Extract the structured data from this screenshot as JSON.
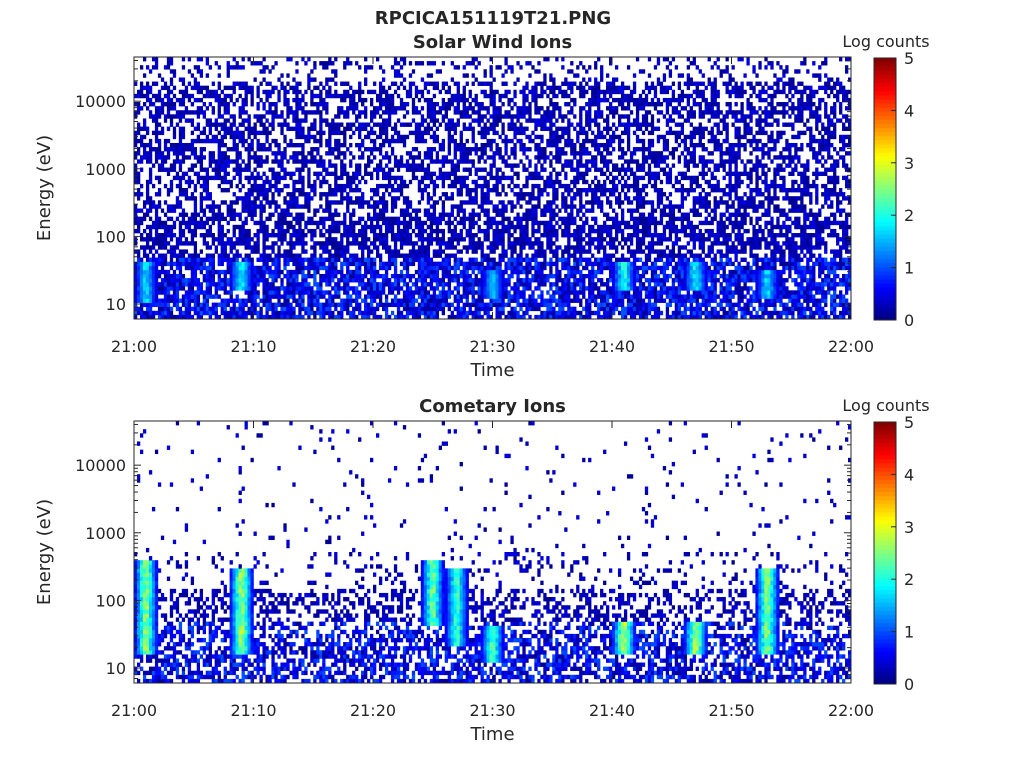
{
  "figure_title": "RPCICA151119T21.PNG",
  "chart_data": [
    {
      "type": "heatmap",
      "title": "Solar Wind Ions",
      "xlabel": "Time",
      "ylabel": "Energy (eV)",
      "x_ticks": [
        "21:00",
        "21:10",
        "21:20",
        "21:30",
        "21:40",
        "21:50",
        "22:00"
      ],
      "xlim": [
        "21:00",
        "22:00"
      ],
      "y_scale": "log",
      "y_ticks": [
        10,
        100,
        1000,
        10000
      ],
      "y_tick_labels": [
        "10",
        "100",
        "1000",
        "10000"
      ],
      "ylim": [
        6,
        45000
      ],
      "colorbar": {
        "label": "Log counts",
        "range": [
          0,
          5
        ],
        "ticks": [
          "0",
          "1",
          "2",
          "3",
          "4",
          "5"
        ],
        "colormap": "jet"
      },
      "features": [
        {
          "time": "21:01",
          "energy_range": [
            10,
            40
          ],
          "log_counts": 2.0
        },
        {
          "time": "21:09",
          "energy_range": [
            15,
            40
          ],
          "log_counts": 2.2
        },
        {
          "time": "21:30",
          "energy_range": [
            12,
            30
          ],
          "log_counts": 1.8
        },
        {
          "time": "21:41",
          "energy_range": [
            15,
            40
          ],
          "log_counts": 2.3
        },
        {
          "time": "21:47",
          "energy_range": [
            15,
            40
          ],
          "log_counts": 2.2
        },
        {
          "time": "21:53",
          "energy_range": [
            12,
            30
          ],
          "log_counts": 2.0
        }
      ]
    },
    {
      "type": "heatmap",
      "title": "Cometary Ions",
      "xlabel": "Time",
      "ylabel": "Energy (eV)",
      "x_ticks": [
        "21:00",
        "21:10",
        "21:20",
        "21:30",
        "21:40",
        "21:50",
        "22:00"
      ],
      "xlim": [
        "21:00",
        "22:00"
      ],
      "y_scale": "log",
      "y_ticks": [
        10,
        100,
        1000,
        10000
      ],
      "y_tick_labels": [
        "10",
        "100",
        "1000",
        "10000"
      ],
      "ylim": [
        6,
        45000
      ],
      "colorbar": {
        "label": "Log counts",
        "range": [
          0,
          5
        ],
        "ticks": [
          "0",
          "1",
          "2",
          "3",
          "4",
          "5"
        ],
        "colormap": "jet"
      },
      "features": [
        {
          "time": "21:01",
          "energy_range": [
            15,
            400
          ],
          "log_counts": 3.0
        },
        {
          "time": "21:09",
          "energy_range": [
            15,
            300
          ],
          "log_counts": 3.1
        },
        {
          "time": "21:25",
          "energy_range": [
            40,
            400
          ],
          "log_counts": 2.8
        },
        {
          "time": "21:27",
          "energy_range": [
            20,
            300
          ],
          "log_counts": 2.5
        },
        {
          "time": "21:30",
          "energy_range": [
            12,
            40
          ],
          "log_counts": 2.6
        },
        {
          "time": "21:41",
          "energy_range": [
            15,
            50
          ],
          "log_counts": 3.3
        },
        {
          "time": "21:47",
          "energy_range": [
            15,
            50
          ],
          "log_counts": 3.2
        },
        {
          "time": "21:53",
          "energy_range": [
            15,
            300
          ],
          "log_counts": 3.0
        }
      ]
    }
  ]
}
